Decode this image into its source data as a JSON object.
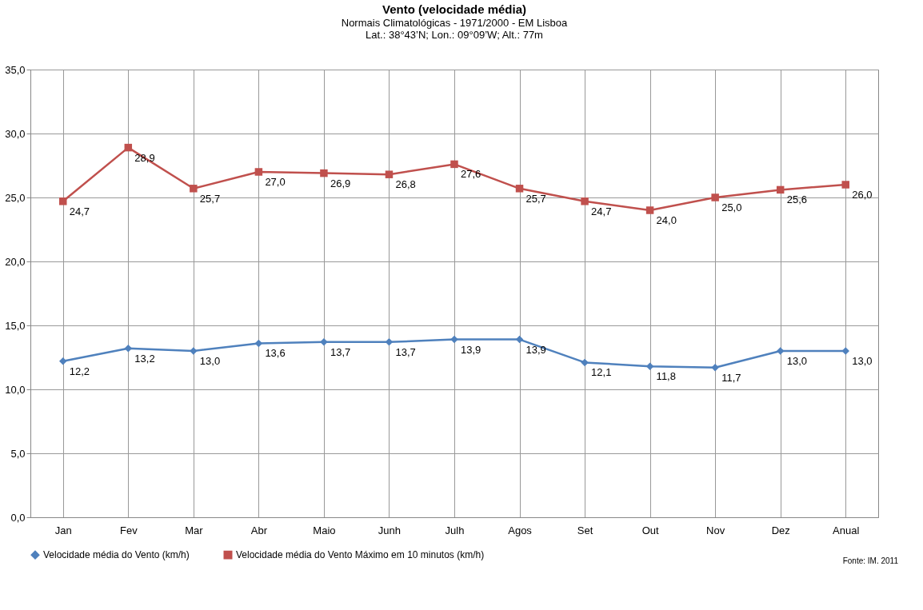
{
  "chart_data": {
    "type": "line",
    "title": "Vento (velocidade média)",
    "subtitle": "Normais Climatológicas - 1971/2000 - EM Lisboa\nLat.: 38°43’N; Lon.: 09°09’W; Alt.: 77m",
    "categories": [
      "Jan",
      "Fev",
      "Mar",
      "Abr",
      "Maio",
      "Junh",
      "Julh",
      "Agos",
      "Set",
      "Out",
      "Nov",
      "Dez",
      "Anual"
    ],
    "series": [
      {
        "name": "Velocidade média do Vento (km/h)",
        "color": "#4f81bd",
        "marker": "diamond",
        "values": [
          12.2,
          13.2,
          13.0,
          13.6,
          13.7,
          13.7,
          13.9,
          13.9,
          12.1,
          11.8,
          11.7,
          13.0,
          13.0
        ],
        "value_labels": [
          "12,2",
          "13,2",
          "13,0",
          "13,6",
          "13,7",
          "13,7",
          "13,9",
          "13,9",
          "12,1",
          "11,8",
          "11,7",
          "13,0",
          "13,0"
        ]
      },
      {
        "name": "Velocidade média do Vento Máximo em 10 minutos (km/h)",
        "color": "#c0504d",
        "marker": "square",
        "values": [
          24.7,
          28.9,
          25.7,
          27.0,
          26.9,
          26.8,
          27.6,
          25.7,
          24.7,
          24.0,
          25.0,
          25.6,
          26.0
        ],
        "value_labels": [
          "24,7",
          "28,9",
          "25,7",
          "27,0",
          "26,9",
          "26,8",
          "27,6",
          "25,7",
          "24,7",
          "24,0",
          "25,0",
          "25,6",
          "26,0"
        ]
      }
    ],
    "ylim": [
      0,
      35
    ],
    "yticks": [
      {
        "value": 0,
        "label": "0,0"
      },
      {
        "value": 5,
        "label": "5,0"
      },
      {
        "value": 10,
        "label": "10,0"
      },
      {
        "value": 15,
        "label": "15,0"
      },
      {
        "value": 20,
        "label": "20,0"
      },
      {
        "value": 25,
        "label": "25,0"
      },
      {
        "value": 30,
        "label": "30,0"
      },
      {
        "value": 35,
        "label": "35,0"
      }
    ],
    "grid": true,
    "legend": "bottom",
    "line_style": "solid",
    "annotations": [
      "Fonte: IM. 2011"
    ]
  }
}
